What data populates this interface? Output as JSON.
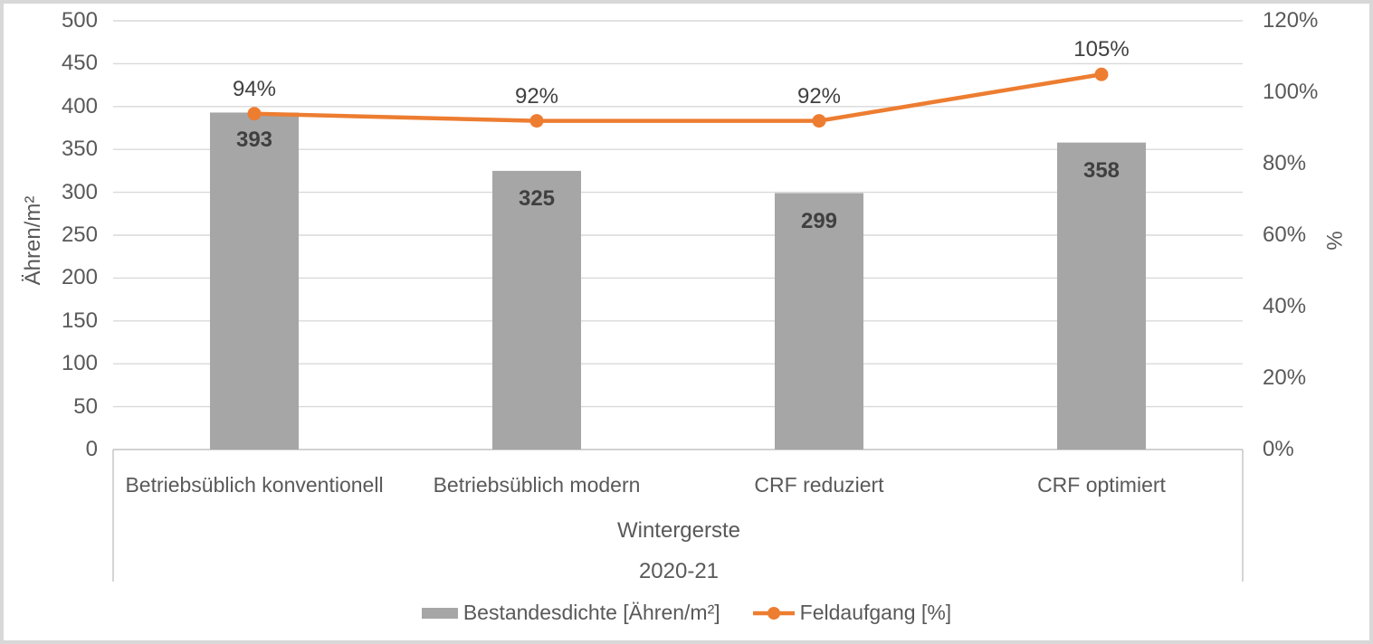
{
  "chart_data": {
    "type": "bar+line combo",
    "categories": [
      "Betriebsüblich konventionell",
      "Betriebsüblich modern",
      "CRF reduziert",
      "CRF optimiert"
    ],
    "group_labels": [
      "Wintergerste",
      "2020-21"
    ],
    "series": [
      {
        "name": "Bestandesdichte [Ähren/m²]",
        "type": "bar",
        "axis": "left",
        "color": "#a6a6a6",
        "values": [
          393,
          325,
          299,
          358
        ],
        "data_labels": [
          "393",
          "325",
          "299",
          "358"
        ]
      },
      {
        "name": "Feldaufgang [%]",
        "type": "line",
        "axis": "right",
        "color": "#ed7d31",
        "values": [
          94,
          92,
          92,
          105
        ],
        "data_labels": [
          "94%",
          "92%",
          "92%",
          "105%"
        ]
      }
    ],
    "left_axis": {
      "title": "Ähren/m²",
      "min": 0,
      "max": 500,
      "step": 50,
      "ticks": [
        "0",
        "50",
        "100",
        "150",
        "200",
        "250",
        "300",
        "350",
        "400",
        "450",
        "500"
      ]
    },
    "right_axis": {
      "title": "%",
      "min": 0,
      "max": 120,
      "step": 20,
      "ticks": [
        "0%",
        "20%",
        "40%",
        "60%",
        "80%",
        "100%",
        "120%"
      ]
    },
    "grid": true,
    "legend_position": "bottom",
    "colors": {
      "bar_fill": "#a6a6a6",
      "line_stroke": "#ed7d31",
      "axis_text": "#595959",
      "data_label_text": "#404040",
      "gridline": "#d9d9d9",
      "axis_line": "#c3c3c3"
    }
  }
}
